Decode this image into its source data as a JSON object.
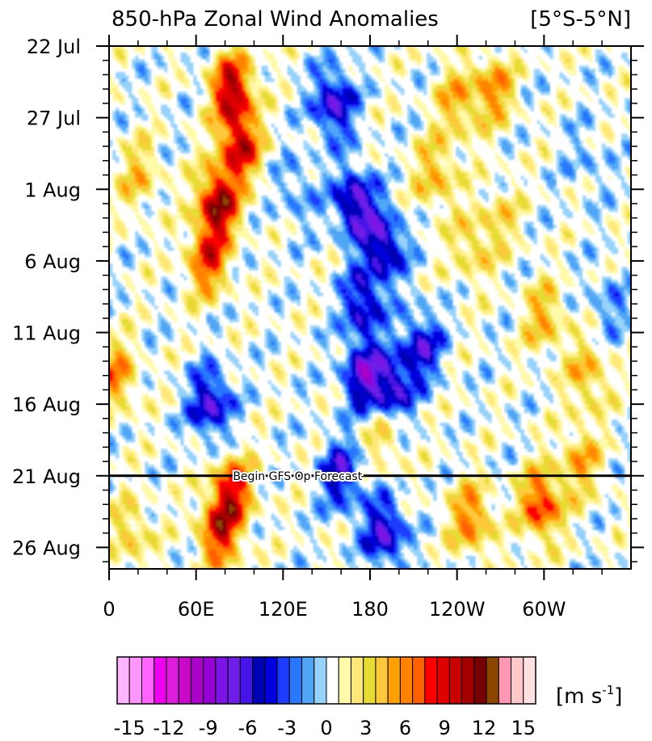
{
  "chart_data": {
    "type": "heatmap",
    "title": "850-hPa Zonal Wind Anomalies",
    "region_label": "[5°S-5°N]",
    "xlabel": "",
    "ylabel": "",
    "x_ticks": [
      "0",
      "60E",
      "120E",
      "180",
      "120W",
      "60W"
    ],
    "x_tick_lon": [
      0,
      60,
      120,
      180,
      240,
      300
    ],
    "xlim": [
      0,
      360
    ],
    "y_ticks": [
      "22 Jul",
      "27 Jul",
      "1 Aug",
      "6 Aug",
      "11 Aug",
      "16 Aug",
      "21 Aug",
      "26 Aug"
    ],
    "y_tick_day": [
      0,
      5,
      10,
      15,
      20,
      25,
      30,
      35
    ],
    "ylim_days": [
      0,
      36.5
    ],
    "forecast_day": 30,
    "forecast_label": "Begin GFS Op Forecast",
    "colorbar": {
      "units_base": "[m s",
      "units_exp": "-1",
      "units_end": "]",
      "tick_labels": [
        "-15",
        "-12",
        "-9",
        "-6",
        "-3",
        "0",
        "3",
        "6",
        "9",
        "12",
        "15"
      ],
      "levels": [
        -17,
        -16,
        -15,
        -14,
        -13,
        -12,
        -11,
        -10,
        -9,
        -8,
        -7,
        -6,
        -5,
        -4,
        -3,
        -2,
        -1,
        1,
        2,
        3,
        4,
        5,
        6,
        7,
        8,
        9,
        10,
        11,
        12,
        13,
        14,
        15,
        16,
        17
      ],
      "colors": [
        "#ffb4ff",
        "#ff96ff",
        "#ff64ff",
        "#f000f0",
        "#dc1edc",
        "#c80ac8",
        "#aa00c8",
        "#9600d2",
        "#7d14e6",
        "#6e1ee6",
        "#4614e6",
        "#0000b4",
        "#0000dc",
        "#1e3cff",
        "#2878ff",
        "#50a5f5",
        "#96d2fa",
        "#ffffff",
        "#fffaaa",
        "#ffe878",
        "#e6dc32",
        "#ffc83c",
        "#ffa000",
        "#ff8200",
        "#ff6000",
        "#ff0000",
        "#e10000",
        "#c80000",
        "#a50000",
        "#780000",
        "#8c4600",
        "#ff96b4",
        "#ffc8c8",
        "#ffe1e1"
      ]
    },
    "features": [
      {
        "lon": 85,
        "day": 3,
        "value": 11
      },
      {
        "lon": 90,
        "day": 7,
        "value": 10
      },
      {
        "lon": 75,
        "day": 11,
        "value": 12
      },
      {
        "lon": 68,
        "day": 15,
        "value": 8
      },
      {
        "lon": 76,
        "day": 34,
        "value": 9
      },
      {
        "lon": 85,
        "day": 31,
        "value": 9
      },
      {
        "lon": 20,
        "day": 9,
        "value": 4
      },
      {
        "lon": 5,
        "day": 23,
        "value": 6
      },
      {
        "lon": 15,
        "day": 34,
        "value": 4
      },
      {
        "lon": 155,
        "day": 4,
        "value": -8
      },
      {
        "lon": 170,
        "day": 11,
        "value": -9
      },
      {
        "lon": 190,
        "day": 14,
        "value": -8
      },
      {
        "lon": 175,
        "day": 18,
        "value": -7
      },
      {
        "lon": 175,
        "day": 23,
        "value": -8
      },
      {
        "lon": 70,
        "day": 25,
        "value": -8
      },
      {
        "lon": 195,
        "day": 24,
        "value": -8
      },
      {
        "lon": 215,
        "day": 21,
        "value": -7
      },
      {
        "lon": 160,
        "day": 30,
        "value": -7
      },
      {
        "lon": 190,
        "day": 34,
        "value": -8
      },
      {
        "lon": 240,
        "day": 4,
        "value": 5
      },
      {
        "lon": 265,
        "day": 3,
        "value": 6
      },
      {
        "lon": 225,
        "day": 9,
        "value": 5
      },
      {
        "lon": 250,
        "day": 14,
        "value": 4
      },
      {
        "lon": 270,
        "day": 12,
        "value": 3
      },
      {
        "lon": 300,
        "day": 19,
        "value": 5
      },
      {
        "lon": 330,
        "day": 23,
        "value": 5
      },
      {
        "lon": 190,
        "day": 27,
        "value": 4
      },
      {
        "lon": 298,
        "day": 32,
        "value": 9
      },
      {
        "lon": 250,
        "day": 33,
        "value": 7
      },
      {
        "lon": 325,
        "day": 29,
        "value": 5
      },
      {
        "lon": 130,
        "day": 10,
        "value": -3
      },
      {
        "lon": 345,
        "day": 18,
        "value": -3
      },
      {
        "lon": 330,
        "day": 8,
        "value": -2
      }
    ]
  }
}
